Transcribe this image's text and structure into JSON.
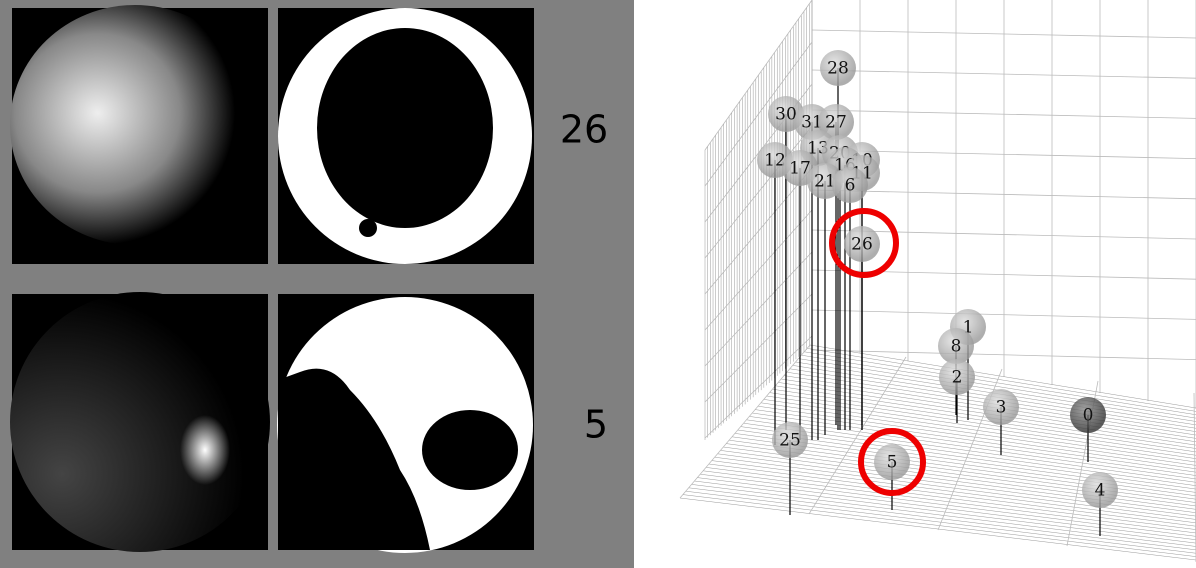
{
  "panels": [
    {
      "label": "26"
    },
    {
      "label": "5"
    }
  ],
  "points": [
    {
      "label": "28"
    },
    {
      "label": "30"
    },
    {
      "label": "31"
    },
    {
      "label": "27"
    },
    {
      "label": "13"
    },
    {
      "label": "20"
    },
    {
      "label": "10"
    },
    {
      "label": "16"
    },
    {
      "label": "11"
    },
    {
      "label": "12"
    },
    {
      "label": "17"
    },
    {
      "label": "21"
    },
    {
      "label": "6"
    },
    {
      "label": "26"
    },
    {
      "label": "1"
    },
    {
      "label": "8"
    },
    {
      "label": "2"
    },
    {
      "label": "3"
    },
    {
      "label": "0"
    },
    {
      "label": "25"
    },
    {
      "label": "5"
    },
    {
      "label": "4"
    }
  ]
}
